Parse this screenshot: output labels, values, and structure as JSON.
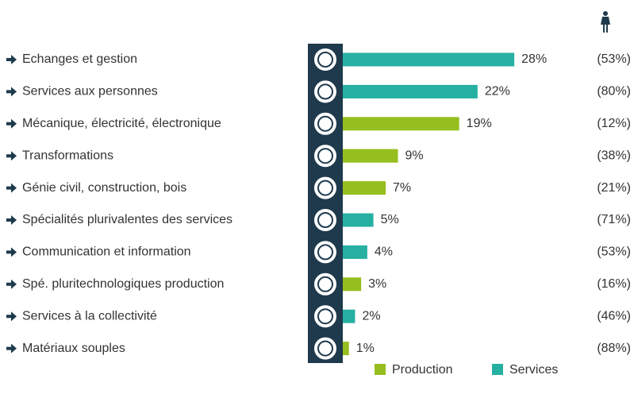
{
  "chart_data": {
    "type": "bar",
    "categories": [
      "Echanges et gestion",
      "Services aux personnes",
      "Mécanique, électricité, électronique",
      "Transformations",
      "Génie civil, construction, bois",
      "Spécialités plurivalentes des services",
      "Communication et information",
      "Spé. pluritechnologiques production",
      "Services à la collectivité",
      "Matériaux souples"
    ],
    "series": [
      {
        "name": "Production",
        "color": "#96be1e",
        "values": [
          null,
          null,
          19,
          9,
          7,
          null,
          null,
          3,
          null,
          1
        ],
        "value_labels": [
          null,
          null,
          "19%",
          "9%",
          "7%",
          null,
          null,
          "3%",
          null,
          "1%"
        ]
      },
      {
        "name": "Services",
        "color": "#26b0a2",
        "values": [
          28,
          22,
          null,
          null,
          null,
          5,
          4,
          null,
          2,
          null
        ],
        "value_labels": [
          "28%",
          "22%",
          null,
          null,
          null,
          "5%",
          "4%",
          null,
          "2%",
          null
        ]
      }
    ],
    "female_share": {
      "values": [
        53,
        80,
        12,
        38,
        21,
        71,
        53,
        16,
        46,
        88
      ],
      "value_labels": [
        "(53%)",
        "(80%)",
        "(12%)",
        "(38%)",
        "(21%)",
        "(71%)",
        "(53%)",
        "(16%)",
        "(46%)",
        "(88%)"
      ]
    }
  }
}
